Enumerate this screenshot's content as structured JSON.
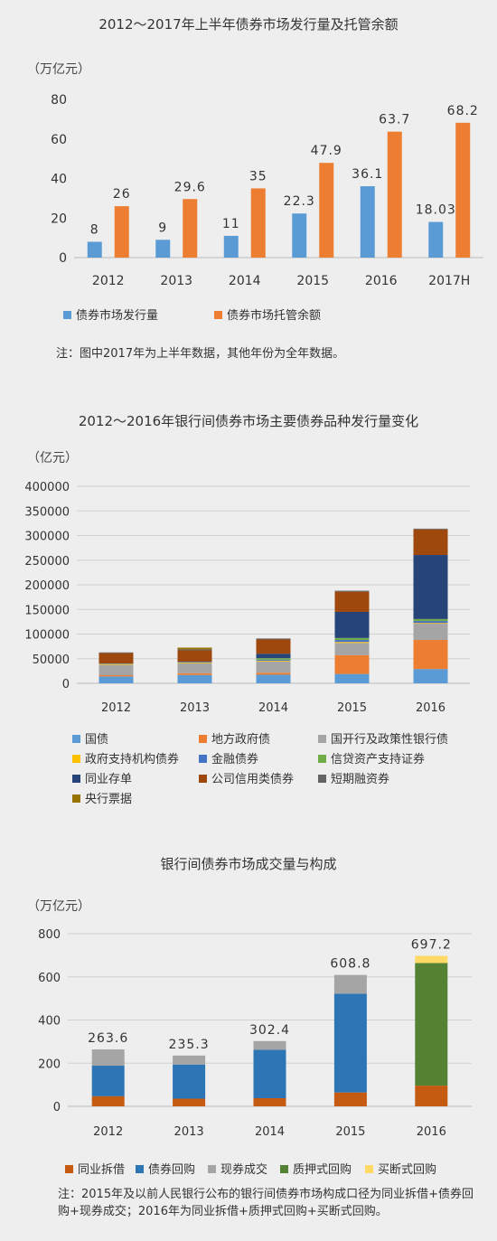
{
  "charts": {
    "c1": {
      "title": "2012～2017年上半年债券市场发行量及托管余额",
      "unit": "（万亿元）",
      "note": "注：图中2017年为上半年数据，其他年份为全年数据。"
    },
    "c2": {
      "title": "2012～2016年银行间债券市场主要债券品种发行量变化",
      "unit": "（亿元）"
    },
    "c3": {
      "title": "银行间债券市场成交量与构成",
      "unit": "（万亿元）",
      "note": "注：2015年及以前人民银行公布的银行间债券市场构成口径为同业拆借+债券回购+现券成交；2016年为同业拆借+质押式回购+买断式回购。"
    }
  },
  "chart_data": [
    {
      "type": "bar",
      "title": "2012～2017年上半年债券市场发行量及托管余额",
      "ylabel": "（万亿元）",
      "ylim": [
        0,
        80
      ],
      "yticks": [
        0,
        20,
        40,
        60,
        80
      ],
      "categories": [
        "2012",
        "2013",
        "2014",
        "2015",
        "2016",
        "2017H"
      ],
      "series": [
        {
          "name": "债券市场发行量",
          "color": "#5b9bd5",
          "values": [
            8,
            9,
            11,
            22.3,
            36.1,
            18.03
          ],
          "labels": [
            "8",
            "9",
            "11",
            "22.3",
            "36.1",
            "18.03"
          ]
        },
        {
          "name": "债券市场托管余额",
          "color": "#ed7d31",
          "values": [
            26,
            29.6,
            35,
            47.9,
            63.7,
            68.2
          ],
          "labels": [
            "26",
            "29.6",
            "35",
            "47.9",
            "63.7",
            "68.2"
          ]
        }
      ],
      "grid": false,
      "legend": "bottom"
    },
    {
      "type": "bar",
      "stacked": true,
      "title": "2012～2016年银行间债券市场主要债券品种发行量变化",
      "ylabel": "（亿元）",
      "ylim": [
        0,
        400000
      ],
      "yticks": [
        0,
        50000,
        100000,
        150000,
        200000,
        250000,
        300000,
        350000,
        400000
      ],
      "categories": [
        "2012",
        "2013",
        "2014",
        "2015",
        "2016"
      ],
      "series": [
        {
          "name": "国债",
          "color": "#5b9bd5",
          "values": [
            14000,
            17000,
            17500,
            19000,
            29000
          ]
        },
        {
          "name": "地方政府债",
          "color": "#ed7d31",
          "values": [
            2500,
            3500,
            4000,
            38000,
            59000
          ]
        },
        {
          "name": "国开行及政策性银行债",
          "color": "#a5a5a5",
          "values": [
            21000,
            20000,
            23000,
            25000,
            33000
          ]
        },
        {
          "name": "政府支持机构债券",
          "color": "#ffc000",
          "values": [
            1500,
            1500,
            1500,
            2000,
            1500
          ]
        },
        {
          "name": "金融债券",
          "color": "#4472c4",
          "values": [
            1000,
            1500,
            2000,
            4000,
            4000
          ]
        },
        {
          "name": "信贷资产支持证券",
          "color": "#70ad47",
          "values": [
            300,
            200,
            3000,
            4000,
            4000
          ]
        },
        {
          "name": "同业存单",
          "color": "#264478",
          "values": [
            0,
            300,
            9000,
            53000,
            130000
          ]
        },
        {
          "name": "公司信用类债券",
          "color": "#9e480e",
          "values": [
            21000,
            23000,
            29000,
            41000,
            52000
          ]
        },
        {
          "name": "短期融资券",
          "color": "#636363",
          "values": [
            1500,
            2000,
            2000,
            2000,
            1500
          ]
        },
        {
          "name": "央行票据",
          "color": "#997300",
          "values": [
            0,
            3500,
            0,
            0,
            0
          ]
        }
      ],
      "grid": true,
      "legend": "bottom"
    },
    {
      "type": "bar",
      "stacked": true,
      "title": "银行间债券市场成交量与构成",
      "ylabel": "（万亿元）",
      "ylim": [
        0,
        800
      ],
      "yticks": [
        0,
        200,
        400,
        600,
        800
      ],
      "categories": [
        "2012",
        "2013",
        "2014",
        "2015",
        "2016"
      ],
      "totals": [
        "263.6",
        "235.3",
        "302.4",
        "608.8",
        "697.2"
      ],
      "series": [
        {
          "name": "同业拆借",
          "color": "#c55a11",
          "values": [
            46.7,
            35.5,
            37.7,
            64.2,
            95.9
          ]
        },
        {
          "name": "债券回购",
          "color": "#2e75b6",
          "values": [
            141.7,
            158.2,
            224.4,
            457.8,
            0
          ]
        },
        {
          "name": "现券成交",
          "color": "#a5a5a5",
          "values": [
            75.2,
            41.6,
            40.3,
            86.8,
            0
          ]
        },
        {
          "name": "质押式回购",
          "color": "#548235",
          "values": [
            0,
            0,
            0,
            0,
            568.3
          ]
        },
        {
          "name": "买断式回购",
          "color": "#ffd966",
          "values": [
            0,
            0,
            0,
            0,
            33
          ]
        }
      ],
      "grid": true,
      "legend": "bottom"
    }
  ]
}
